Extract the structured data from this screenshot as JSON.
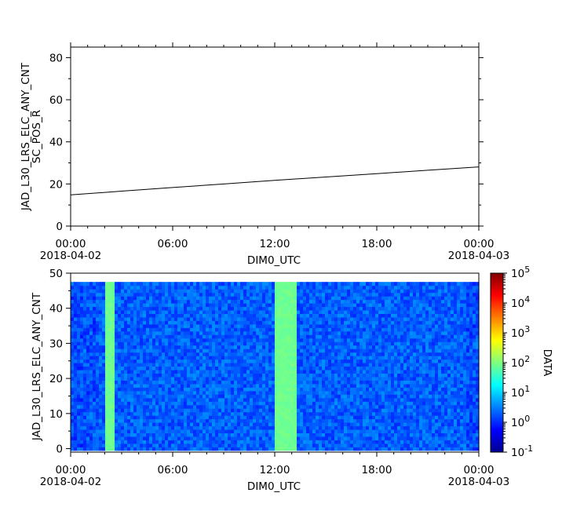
{
  "chart_data": [
    {
      "type": "line",
      "ylabel_lines": [
        "JAD_L30_LRS_ELC_ANY_CNT",
        "SC_POS_R"
      ],
      "xlabel": "DIM0_UTC",
      "xlim_hours": [
        0,
        24
      ],
      "ylim": [
        0,
        85
      ],
      "x_ticks": [
        {
          "hour": 0,
          "label": "00:00",
          "date": "2018-04-02"
        },
        {
          "hour": 6,
          "label": "06:00",
          "date": ""
        },
        {
          "hour": 12,
          "label": "12:00",
          "date": ""
        },
        {
          "hour": 18,
          "label": "18:00",
          "date": ""
        },
        {
          "hour": 24,
          "label": "00:00",
          "date": "2018-04-03"
        }
      ],
      "y_ticks": [
        0,
        20,
        40,
        60,
        80
      ],
      "series": [
        {
          "x_hours": [
            0,
            3,
            6,
            9,
            12,
            15,
            18,
            21,
            24
          ],
          "values": [
            14.8,
            16.6,
            18.3,
            20.0,
            21.7,
            23.3,
            24.9,
            26.5,
            28.1
          ],
          "color": "#000000"
        }
      ]
    },
    {
      "type": "heatmap",
      "ylabel": "JAD_L30_LRS_ELC_ANY_CNT",
      "xlabel": "DIM0_UTC",
      "colorbar_label": "DATA",
      "colorscale": "jet",
      "log_scale": true,
      "xlim_hours": [
        0,
        24
      ],
      "ylim": [
        -1,
        50
      ],
      "y_data_range": [
        0,
        47
      ],
      "y_ticks": [
        0,
        10,
        20,
        30,
        40,
        50
      ],
      "x_ticks": [
        {
          "hour": 0,
          "label": "00:00",
          "date": "2018-04-02"
        },
        {
          "hour": 6,
          "label": "06:00",
          "date": ""
        },
        {
          "hour": 12,
          "label": "12:00",
          "date": ""
        },
        {
          "hour": 18,
          "label": "18:00",
          "date": ""
        },
        {
          "hour": 24,
          "label": "00:00",
          "date": "2018-04-03"
        }
      ],
      "colorbar_ticks": [
        {
          "exp": 5,
          "label": "10",
          "sup": "5"
        },
        {
          "exp": 4,
          "label": "10",
          "sup": "4"
        },
        {
          "exp": 3,
          "label": "10",
          "sup": "3"
        },
        {
          "exp": 2,
          "label": "10",
          "sup": "2"
        },
        {
          "exp": 1,
          "label": "10",
          "sup": "1"
        },
        {
          "exp": 0,
          "label": "10",
          "sup": "0"
        },
        {
          "exp": -1,
          "label": "10",
          "sup": "-1"
        }
      ],
      "colorbar_range_exp": [
        -1,
        5
      ],
      "background_log_level": [
        0.0,
        0.6
      ],
      "high_bands": [
        {
          "start_hour": 2.0,
          "end_hour": 2.6,
          "log_level": 1.9
        },
        {
          "start_hour": 12.0,
          "end_hour": 13.3,
          "log_level": 1.9
        }
      ]
    }
  ]
}
